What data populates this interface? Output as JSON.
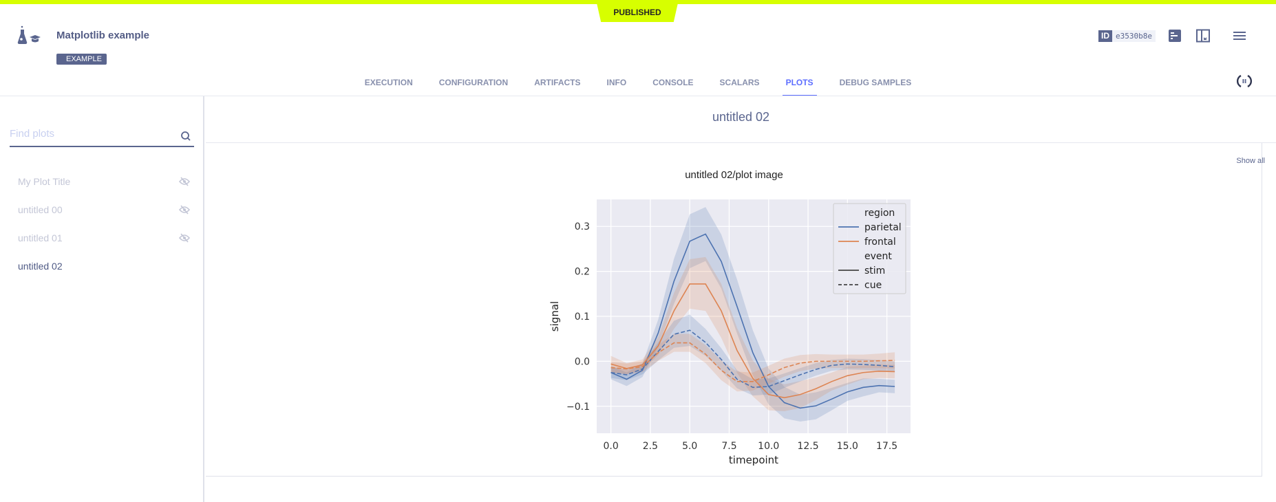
{
  "status_badge": "PUBLISHED",
  "header": {
    "title": "Matplotlib example",
    "tag": "EXAMPLE",
    "id_label": "ID",
    "id_value": "e3530b8e"
  },
  "tabs": [
    {
      "label": "EXECUTION"
    },
    {
      "label": "CONFIGURATION"
    },
    {
      "label": "ARTIFACTS"
    },
    {
      "label": "INFO"
    },
    {
      "label": "CONSOLE"
    },
    {
      "label": "SCALARS"
    },
    {
      "label": "PLOTS",
      "active": true
    },
    {
      "label": "DEBUG SAMPLES"
    }
  ],
  "sidebar": {
    "search_placeholder": "Find plots",
    "show_all": "Show all",
    "items": [
      {
        "label": "My Plot Title",
        "hidden": true
      },
      {
        "label": "untitled 00",
        "hidden": true
      },
      {
        "label": "untitled 01",
        "hidden": true
      },
      {
        "label": "untitled 02",
        "hidden": false
      }
    ]
  },
  "main": {
    "title": "untitled 02",
    "plot_title": "untitled 02/plot image"
  },
  "colors": {
    "accent": "#5c6dff",
    "brand": "#d7ff00",
    "parietal": "#4c72b0",
    "frontal": "#dd8452",
    "plot_bg": "#eaeaf2"
  },
  "chart_data": {
    "type": "line",
    "xlabel": "timepoint",
    "ylabel": "signal",
    "xlim": [
      -0.9,
      19.0
    ],
    "ylim": [
      -0.16,
      0.36
    ],
    "xticks": [
      "0.0",
      "2.5",
      "5.0",
      "7.5",
      "10.0",
      "12.5",
      "15.0",
      "17.5"
    ],
    "yticks": [
      "−0.1",
      "0.0",
      "0.1",
      "0.2",
      "0.3"
    ],
    "grid": true,
    "legend_placement": "top-right",
    "legend": {
      "hue_title": "region",
      "style_title": "event",
      "hue": [
        "parietal",
        "frontal"
      ],
      "style": [
        "stim",
        "cue"
      ]
    },
    "x": [
      0,
      1,
      2,
      3,
      4,
      5,
      6,
      7,
      8,
      9,
      10,
      11,
      12,
      13,
      14,
      15,
      16,
      17,
      18
    ],
    "series": [
      {
        "name": "parietal",
        "event": "stim",
        "values": [
          -0.025,
          -0.04,
          -0.02,
          0.063,
          0.178,
          0.267,
          0.283,
          0.222,
          0.122,
          0.019,
          -0.056,
          -0.092,
          -0.104,
          -0.099,
          -0.084,
          -0.068,
          -0.058,
          -0.054,
          -0.056
        ],
        "ci": [
          0.015,
          0.015,
          0.015,
          0.03,
          0.05,
          0.06,
          0.06,
          0.06,
          0.06,
          0.05,
          0.04,
          0.035,
          0.03,
          0.03,
          0.025,
          0.02,
          0.02,
          0.015,
          0.015
        ]
      },
      {
        "name": "frontal",
        "event": "stim",
        "values": [
          -0.006,
          -0.016,
          -0.008,
          0.034,
          0.112,
          0.172,
          0.172,
          0.112,
          0.024,
          -0.038,
          -0.074,
          -0.081,
          -0.074,
          -0.061,
          -0.045,
          -0.032,
          -0.025,
          -0.022,
          -0.023
        ],
        "ci": [
          0.018,
          0.012,
          0.012,
          0.02,
          0.04,
          0.055,
          0.06,
          0.06,
          0.05,
          0.04,
          0.035,
          0.03,
          0.03,
          0.025,
          0.02,
          0.02,
          0.015,
          0.015,
          0.015
        ]
      },
      {
        "name": "parietal",
        "event": "cue",
        "values": [
          -0.025,
          -0.03,
          -0.017,
          0.022,
          0.06,
          0.069,
          0.042,
          0.004,
          -0.04,
          -0.058,
          -0.056,
          -0.043,
          -0.03,
          -0.018,
          -0.009,
          -0.006,
          -0.007,
          -0.009,
          -0.012
        ],
        "ci": [
          0.012,
          0.012,
          0.012,
          0.02,
          0.03,
          0.035,
          0.03,
          0.025,
          0.02,
          0.018,
          0.018,
          0.016,
          0.015,
          0.014,
          0.012,
          0.012,
          0.012,
          0.012,
          0.012
        ]
      },
      {
        "name": "frontal",
        "event": "cue",
        "values": [
          -0.014,
          -0.017,
          -0.012,
          0.019,
          0.041,
          0.041,
          0.016,
          -0.02,
          -0.045,
          -0.045,
          -0.03,
          -0.014,
          -0.004,
          0,
          0,
          0,
          0,
          0.001,
          0.002
        ],
        "ci": [
          0.012,
          0.012,
          0.012,
          0.018,
          0.02,
          0.02,
          0.02,
          0.022,
          0.022,
          0.02,
          0.02,
          0.02,
          0.018,
          0.016,
          0.015,
          0.015,
          0.015,
          0.016,
          0.018
        ]
      }
    ]
  }
}
